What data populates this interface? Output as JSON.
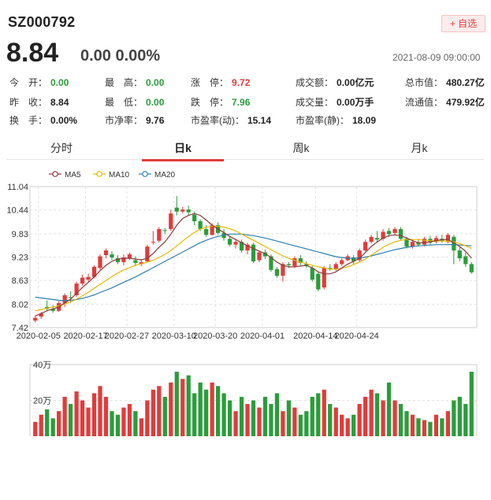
{
  "header": {
    "code": "SZ000792",
    "watch_label": "+ 自选",
    "price": "8.84",
    "change": "0.00  0.00%",
    "datetime": "2021-08-09 09:00:00"
  },
  "quote": [
    {
      "label": "今　开：",
      "value": "0.00",
      "color": "g"
    },
    {
      "label": "最　高：",
      "value": "0.00",
      "color": "g"
    },
    {
      "label": "涨　停：",
      "value": "9.72",
      "color": "r"
    },
    {
      "label": "成交额：",
      "value": "0.00亿元",
      "color": "k"
    },
    {
      "label": "总市值：",
      "value": "480.27亿",
      "color": "k"
    },
    {
      "label": "昨　收：",
      "value": "8.84",
      "color": "k"
    },
    {
      "label": "最　低：",
      "value": "0.00",
      "color": "g"
    },
    {
      "label": "跌　停：",
      "value": "7.96",
      "color": "g"
    },
    {
      "label": "成交量：",
      "value": "0.00万手",
      "color": "k"
    },
    {
      "label": "流通值：",
      "value": "479.92亿",
      "color": "k"
    },
    {
      "label": "换　手：",
      "value": "0.00%",
      "color": "k"
    },
    {
      "label": "市净率：",
      "value": "9.76",
      "color": "k"
    },
    {
      "label": "市盈率(动)：",
      "value": "15.14",
      "color": "k"
    },
    {
      "label": "市盈率(静)：",
      "value": "18.09",
      "color": "k"
    }
  ],
  "tabs": [
    {
      "label": "分时",
      "active": false
    },
    {
      "label": "日k",
      "active": true
    },
    {
      "label": "周k",
      "active": false
    },
    {
      "label": "月k",
      "active": false
    }
  ],
  "chart_data": {
    "type": "candlestick",
    "legend": [
      {
        "name": "MA5",
        "color": "#8b3a3a"
      },
      {
        "name": "MA10",
        "color": "#e6b800"
      },
      {
        "name": "MA20",
        "color": "#2d7fb0"
      }
    ],
    "y_ticks": [
      "11.04",
      "10.44",
      "9.83",
      "9.23",
      "8.63",
      "8.02",
      "7.42"
    ],
    "ylim": [
      7.42,
      11.04
    ],
    "x_ticks": [
      "2020-02-05",
      "2020-02-17",
      "2020-02-27",
      "2020-03-10",
      "2020-03-20",
      "2020-04-01",
      "2020-04-14",
      "2020-04-24"
    ],
    "up_color": "#e23b3b",
    "down_color": "#2a9d3a",
    "candles": [
      [
        7.6,
        7.67,
        7.72,
        7.55
      ],
      [
        7.7,
        7.78,
        7.82,
        7.64
      ],
      [
        7.95,
        7.9,
        8.12,
        7.85
      ],
      [
        7.9,
        7.85,
        8.0,
        7.8
      ],
      [
        7.85,
        8.05,
        8.1,
        7.82
      ],
      [
        8.05,
        8.25,
        8.3,
        7.95
      ],
      [
        8.2,
        8.18,
        8.35,
        8.05
      ],
      [
        8.25,
        8.55,
        8.6,
        8.2
      ],
      [
        8.55,
        8.7,
        8.78,
        8.5
      ],
      [
        8.65,
        8.72,
        8.8,
        8.6
      ],
      [
        8.72,
        8.98,
        9.02,
        8.68
      ],
      [
        8.95,
        9.25,
        9.3,
        8.9
      ],
      [
        9.28,
        9.4,
        9.45,
        9.2
      ],
      [
        9.3,
        9.22,
        9.38,
        9.15
      ],
      [
        9.2,
        9.1,
        9.28,
        9.05
      ],
      [
        9.1,
        9.22,
        9.3,
        9.02
      ],
      [
        9.2,
        9.3,
        9.35,
        9.15
      ],
      [
        9.15,
        9.08,
        9.25,
        9.0
      ],
      [
        9.05,
        9.1,
        9.18,
        9.0
      ],
      [
        9.12,
        9.5,
        9.55,
        9.1
      ],
      [
        9.6,
        9.62,
        9.9,
        9.55
      ],
      [
        9.65,
        9.95,
        10.0,
        9.6
      ],
      [
        9.92,
        9.9,
        9.98,
        9.82
      ],
      [
        9.95,
        10.35,
        10.45,
        9.9
      ],
      [
        10.5,
        10.4,
        10.8,
        10.3
      ],
      [
        10.4,
        10.45,
        10.52,
        10.35
      ],
      [
        10.45,
        10.38,
        10.55,
        10.3
      ],
      [
        10.32,
        10.15,
        10.4,
        10.05
      ],
      [
        10.15,
        9.95,
        10.2,
        9.9
      ],
      [
        9.95,
        9.8,
        10.05,
        9.75
      ],
      [
        9.8,
        10.05,
        10.1,
        9.78
      ],
      [
        10.05,
        9.85,
        10.12,
        9.8
      ],
      [
        9.85,
        9.72,
        9.95,
        9.65
      ],
      [
        9.7,
        9.55,
        9.78,
        9.5
      ],
      [
        9.55,
        9.62,
        9.7,
        9.45
      ],
      [
        9.62,
        9.4,
        9.68,
        9.35
      ],
      [
        9.4,
        9.55,
        9.6,
        9.3
      ],
      [
        9.55,
        9.12,
        9.6,
        9.08
      ],
      [
        9.15,
        9.35,
        9.4,
        9.1
      ],
      [
        9.35,
        9.25,
        9.42,
        9.18
      ],
      [
        9.25,
        8.9,
        9.3,
        8.85
      ],
      [
        8.92,
        8.75,
        8.98,
        8.7
      ],
      [
        8.75,
        9.05,
        9.1,
        8.6
      ],
      [
        9.05,
        9.02,
        9.1,
        8.95
      ],
      [
        9.0,
        9.2,
        9.25,
        8.95
      ],
      [
        9.2,
        9.08,
        9.28,
        9.02
      ],
      [
        9.05,
        9.0,
        9.12,
        8.95
      ],
      [
        8.95,
        8.65,
        9.0,
        8.6
      ],
      [
        8.8,
        8.4,
        8.85,
        8.35
      ],
      [
        8.45,
        8.95,
        9.0,
        8.4
      ],
      [
        8.95,
        8.92,
        9.05,
        8.88
      ],
      [
        8.92,
        9.05,
        9.1,
        8.88
      ],
      [
        9.05,
        9.15,
        9.2,
        9.0
      ],
      [
        9.15,
        9.25,
        9.3,
        9.12
      ],
      [
        9.22,
        9.12,
        9.28,
        9.05
      ],
      [
        9.15,
        9.4,
        9.45,
        9.1
      ],
      [
        9.4,
        9.62,
        9.68,
        9.38
      ],
      [
        9.62,
        9.75,
        9.8,
        9.58
      ],
      [
        9.72,
        9.68,
        9.9,
        9.6
      ],
      [
        9.7,
        9.88,
        9.95,
        9.65
      ],
      [
        9.9,
        9.82,
        9.98,
        9.75
      ],
      [
        9.85,
        9.95,
        10.0,
        9.8
      ],
      [
        9.95,
        9.7,
        10.0,
        9.65
      ],
      [
        9.7,
        9.5,
        9.75,
        9.45
      ],
      [
        9.5,
        9.62,
        9.68,
        9.45
      ],
      [
        9.6,
        9.55,
        9.7,
        9.5
      ],
      [
        9.55,
        9.7,
        9.75,
        9.5
      ],
      [
        9.7,
        9.6,
        9.78,
        9.55
      ],
      [
        9.62,
        9.72,
        9.78,
        9.58
      ],
      [
        9.7,
        9.65,
        9.8,
        9.6
      ],
      [
        9.62,
        9.8,
        9.85,
        9.58
      ],
      [
        9.75,
        9.4,
        9.8,
        9.05
      ],
      [
        9.4,
        9.2,
        9.5,
        9.12
      ],
      [
        9.25,
        9.05,
        9.35,
        8.98
      ],
      [
        9.05,
        8.84,
        9.1,
        8.8
      ]
    ],
    "ma5": [
      7.72,
      7.78,
      7.85,
      7.9,
      7.95,
      8.05,
      8.15,
      8.3,
      8.45,
      8.58,
      8.72,
      8.88,
      9.02,
      9.12,
      9.18,
      9.2,
      9.2,
      9.18,
      9.16,
      9.2,
      9.32,
      9.48,
      9.62,
      9.82,
      10.05,
      10.22,
      10.3,
      10.35,
      10.3,
      10.18,
      10.05,
      9.95,
      9.86,
      9.76,
      9.68,
      9.6,
      9.52,
      9.45,
      9.38,
      9.32,
      9.22,
      9.1,
      9.02,
      8.98,
      8.98,
      9.0,
      9.02,
      8.95,
      8.85,
      8.8,
      8.8,
      8.85,
      8.95,
      9.05,
      9.12,
      9.2,
      9.35,
      9.5,
      9.62,
      9.72,
      9.78,
      9.8,
      9.78,
      9.72,
      9.65,
      9.6,
      9.6,
      9.62,
      9.65,
      9.68,
      9.68,
      9.6,
      9.5,
      9.38,
      9.2
    ],
    "ma10": [
      7.85,
      7.88,
      7.92,
      7.95,
      7.98,
      8.02,
      8.08,
      8.15,
      8.24,
      8.33,
      8.43,
      8.53,
      8.63,
      8.73,
      8.82,
      8.9,
      8.96,
      9.02,
      9.06,
      9.1,
      9.15,
      9.22,
      9.3,
      9.4,
      9.52,
      9.64,
      9.76,
      9.86,
      9.95,
      10.0,
      10.02,
      10.02,
      10.0,
      9.96,
      9.9,
      9.82,
      9.74,
      9.66,
      9.58,
      9.5,
      9.42,
      9.34,
      9.26,
      9.2,
      9.15,
      9.1,
      9.06,
      9.02,
      8.98,
      8.95,
      8.92,
      8.92,
      8.94,
      8.98,
      9.04,
      9.1,
      9.18,
      9.28,
      9.38,
      9.48,
      9.56,
      9.62,
      9.66,
      9.68,
      9.68,
      9.68,
      9.66,
      9.65,
      9.64,
      9.64,
      9.64,
      9.62,
      9.58,
      9.52,
      9.45
    ],
    "ma20": [
      8.2,
      8.18,
      8.16,
      8.14,
      8.12,
      8.11,
      8.12,
      8.14,
      8.17,
      8.21,
      8.26,
      8.32,
      8.38,
      8.44,
      8.51,
      8.58,
      8.65,
      8.72,
      8.8,
      8.88,
      8.96,
      9.04,
      9.12,
      9.2,
      9.28,
      9.36,
      9.44,
      9.52,
      9.6,
      9.66,
      9.72,
      9.76,
      9.8,
      9.82,
      9.82,
      9.82,
      9.8,
      9.78,
      9.75,
      9.72,
      9.68,
      9.64,
      9.6,
      9.56,
      9.52,
      9.48,
      9.44,
      9.4,
      9.36,
      9.32,
      9.28,
      9.24,
      9.22,
      9.2,
      9.2,
      9.21,
      9.23,
      9.26,
      9.3,
      9.34,
      9.38,
      9.42,
      9.45,
      9.48,
      9.5,
      9.52,
      9.53,
      9.54,
      9.55,
      9.55,
      9.55,
      9.55,
      9.54,
      9.53,
      9.52
    ],
    "volume_ticks": [
      "40万",
      "20万"
    ],
    "volume_max": 40,
    "volume": [
      8,
      12,
      15,
      10,
      14,
      22,
      18,
      25,
      20,
      16,
      24,
      28,
      22,
      14,
      12,
      16,
      18,
      14,
      10,
      20,
      26,
      28,
      22,
      30,
      36,
      32,
      34,
      24,
      30,
      26,
      30,
      28,
      24,
      20,
      14,
      22,
      18,
      20,
      16,
      22,
      18,
      24,
      14,
      20,
      16,
      12,
      14,
      22,
      24,
      26,
      18,
      16,
      12,
      10,
      12,
      18,
      22,
      26,
      24,
      20,
      30,
      20,
      18,
      14,
      12,
      10,
      9,
      8,
      12,
      10,
      14,
      20,
      22,
      18,
      36
    ]
  }
}
